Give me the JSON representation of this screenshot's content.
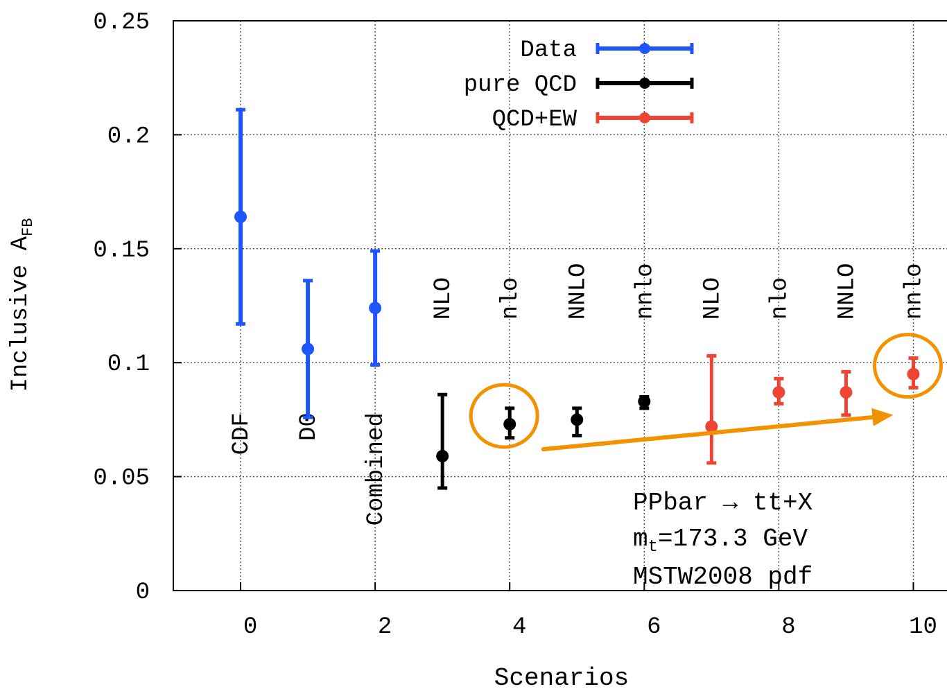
{
  "chart_data": {
    "type": "scatter",
    "title": "",
    "xlabel": "Scenarios",
    "ylabel_main": "Inclusive A",
    "ylabel_sub": "FB",
    "xlim": [
      -1,
      10.5
    ],
    "ylim": [
      0,
      0.25
    ],
    "x_ticks": [
      0,
      2,
      4,
      6,
      8,
      10
    ],
    "y_ticks": [
      0,
      0.05,
      0.1,
      0.15,
      0.2,
      0.25
    ],
    "x_tick_labels": [
      "0",
      "2",
      "4",
      "6",
      "8",
      "10"
    ],
    "y_tick_labels": [
      "0",
      "0.05",
      "0.1",
      "0.15",
      "0.2",
      "0.25"
    ],
    "grid": true,
    "legend_position": "top-center",
    "series": [
      {
        "name": "Data",
        "color": "#1f55ff",
        "points": [
          {
            "x": 0,
            "y": 0.164,
            "ylo": 0.117,
            "yhi": 0.211,
            "label": "CDF"
          },
          {
            "x": 1,
            "y": 0.106,
            "ylo": 0.076,
            "yhi": 0.136,
            "label": "D0"
          },
          {
            "x": 2,
            "y": 0.124,
            "ylo": 0.099,
            "yhi": 0.149,
            "label": "Combined"
          }
        ]
      },
      {
        "name": "pure QCD",
        "color": "#000000",
        "points": [
          {
            "x": 3,
            "y": 0.059,
            "ylo": 0.045,
            "yhi": 0.086,
            "label": "NLO"
          },
          {
            "x": 4,
            "y": 0.073,
            "ylo": 0.067,
            "yhi": 0.08,
            "label": "nlo"
          },
          {
            "x": 5,
            "y": 0.075,
            "ylo": 0.068,
            "yhi": 0.08,
            "label": "NNLO"
          },
          {
            "x": 6,
            "y": 0.083,
            "ylo": 0.08,
            "yhi": 0.085,
            "label": "nnlo"
          }
        ]
      },
      {
        "name": "QCD+EW",
        "color": "#ee4433",
        "points": [
          {
            "x": 7,
            "y": 0.072,
            "ylo": 0.056,
            "yhi": 0.103,
            "label": "NLO"
          },
          {
            "x": 8,
            "y": 0.087,
            "ylo": 0.082,
            "yhi": 0.093,
            "label": "nlo"
          },
          {
            "x": 9,
            "y": 0.087,
            "ylo": 0.077,
            "yhi": 0.096,
            "label": "NNLO"
          },
          {
            "x": 10,
            "y": 0.095,
            "ylo": 0.089,
            "yhi": 0.102,
            "label": "nnlo"
          }
        ]
      }
    ],
    "info_lines": {
      "line1": "PPbar → tt+X",
      "line2_prefix": "m",
      "line2_sub": "t",
      "line2_suffix": "=173.3 GeV",
      "line3": "MSTW2008 pdf"
    },
    "annotations": {
      "highlight_color": "#f39200",
      "circles": [
        {
          "x": 4,
          "y": 0.073
        },
        {
          "x": 10,
          "y": 0.095
        }
      ],
      "arrow": {
        "from": {
          "x": 4.5,
          "y": 0.062
        },
        "to": {
          "x": 9.7,
          "y": 0.077
        }
      }
    }
  }
}
